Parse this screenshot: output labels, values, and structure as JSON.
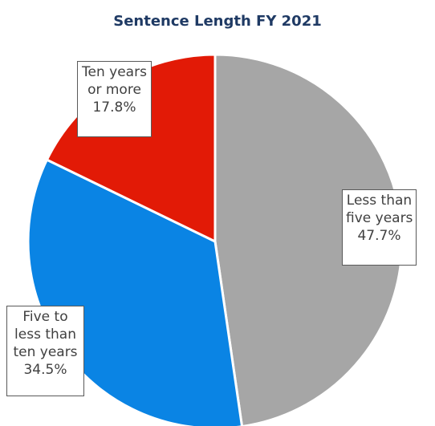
{
  "chart_data": {
    "type": "pie",
    "title": "Sentence Length FY 2021",
    "slices": [
      {
        "label_lines": [
          "Less than",
          "five years"
        ],
        "value": 47.7,
        "value_label": "47.7%",
        "color": "#a6a6a6"
      },
      {
        "label_lines": [
          "Five to",
          "less than",
          "ten years"
        ],
        "value": 34.5,
        "value_label": "34.5%",
        "color": "#0a84e4"
      },
      {
        "label_lines": [
          "Ten years",
          "or more"
        ],
        "value": 17.8,
        "value_label": "17.8%",
        "color": "#e21a06"
      }
    ],
    "start_angle_deg": 0,
    "direction": "clockwise",
    "slice_border_color": "#ffffff",
    "legend": "none",
    "data_labels": "boxed callouts"
  }
}
